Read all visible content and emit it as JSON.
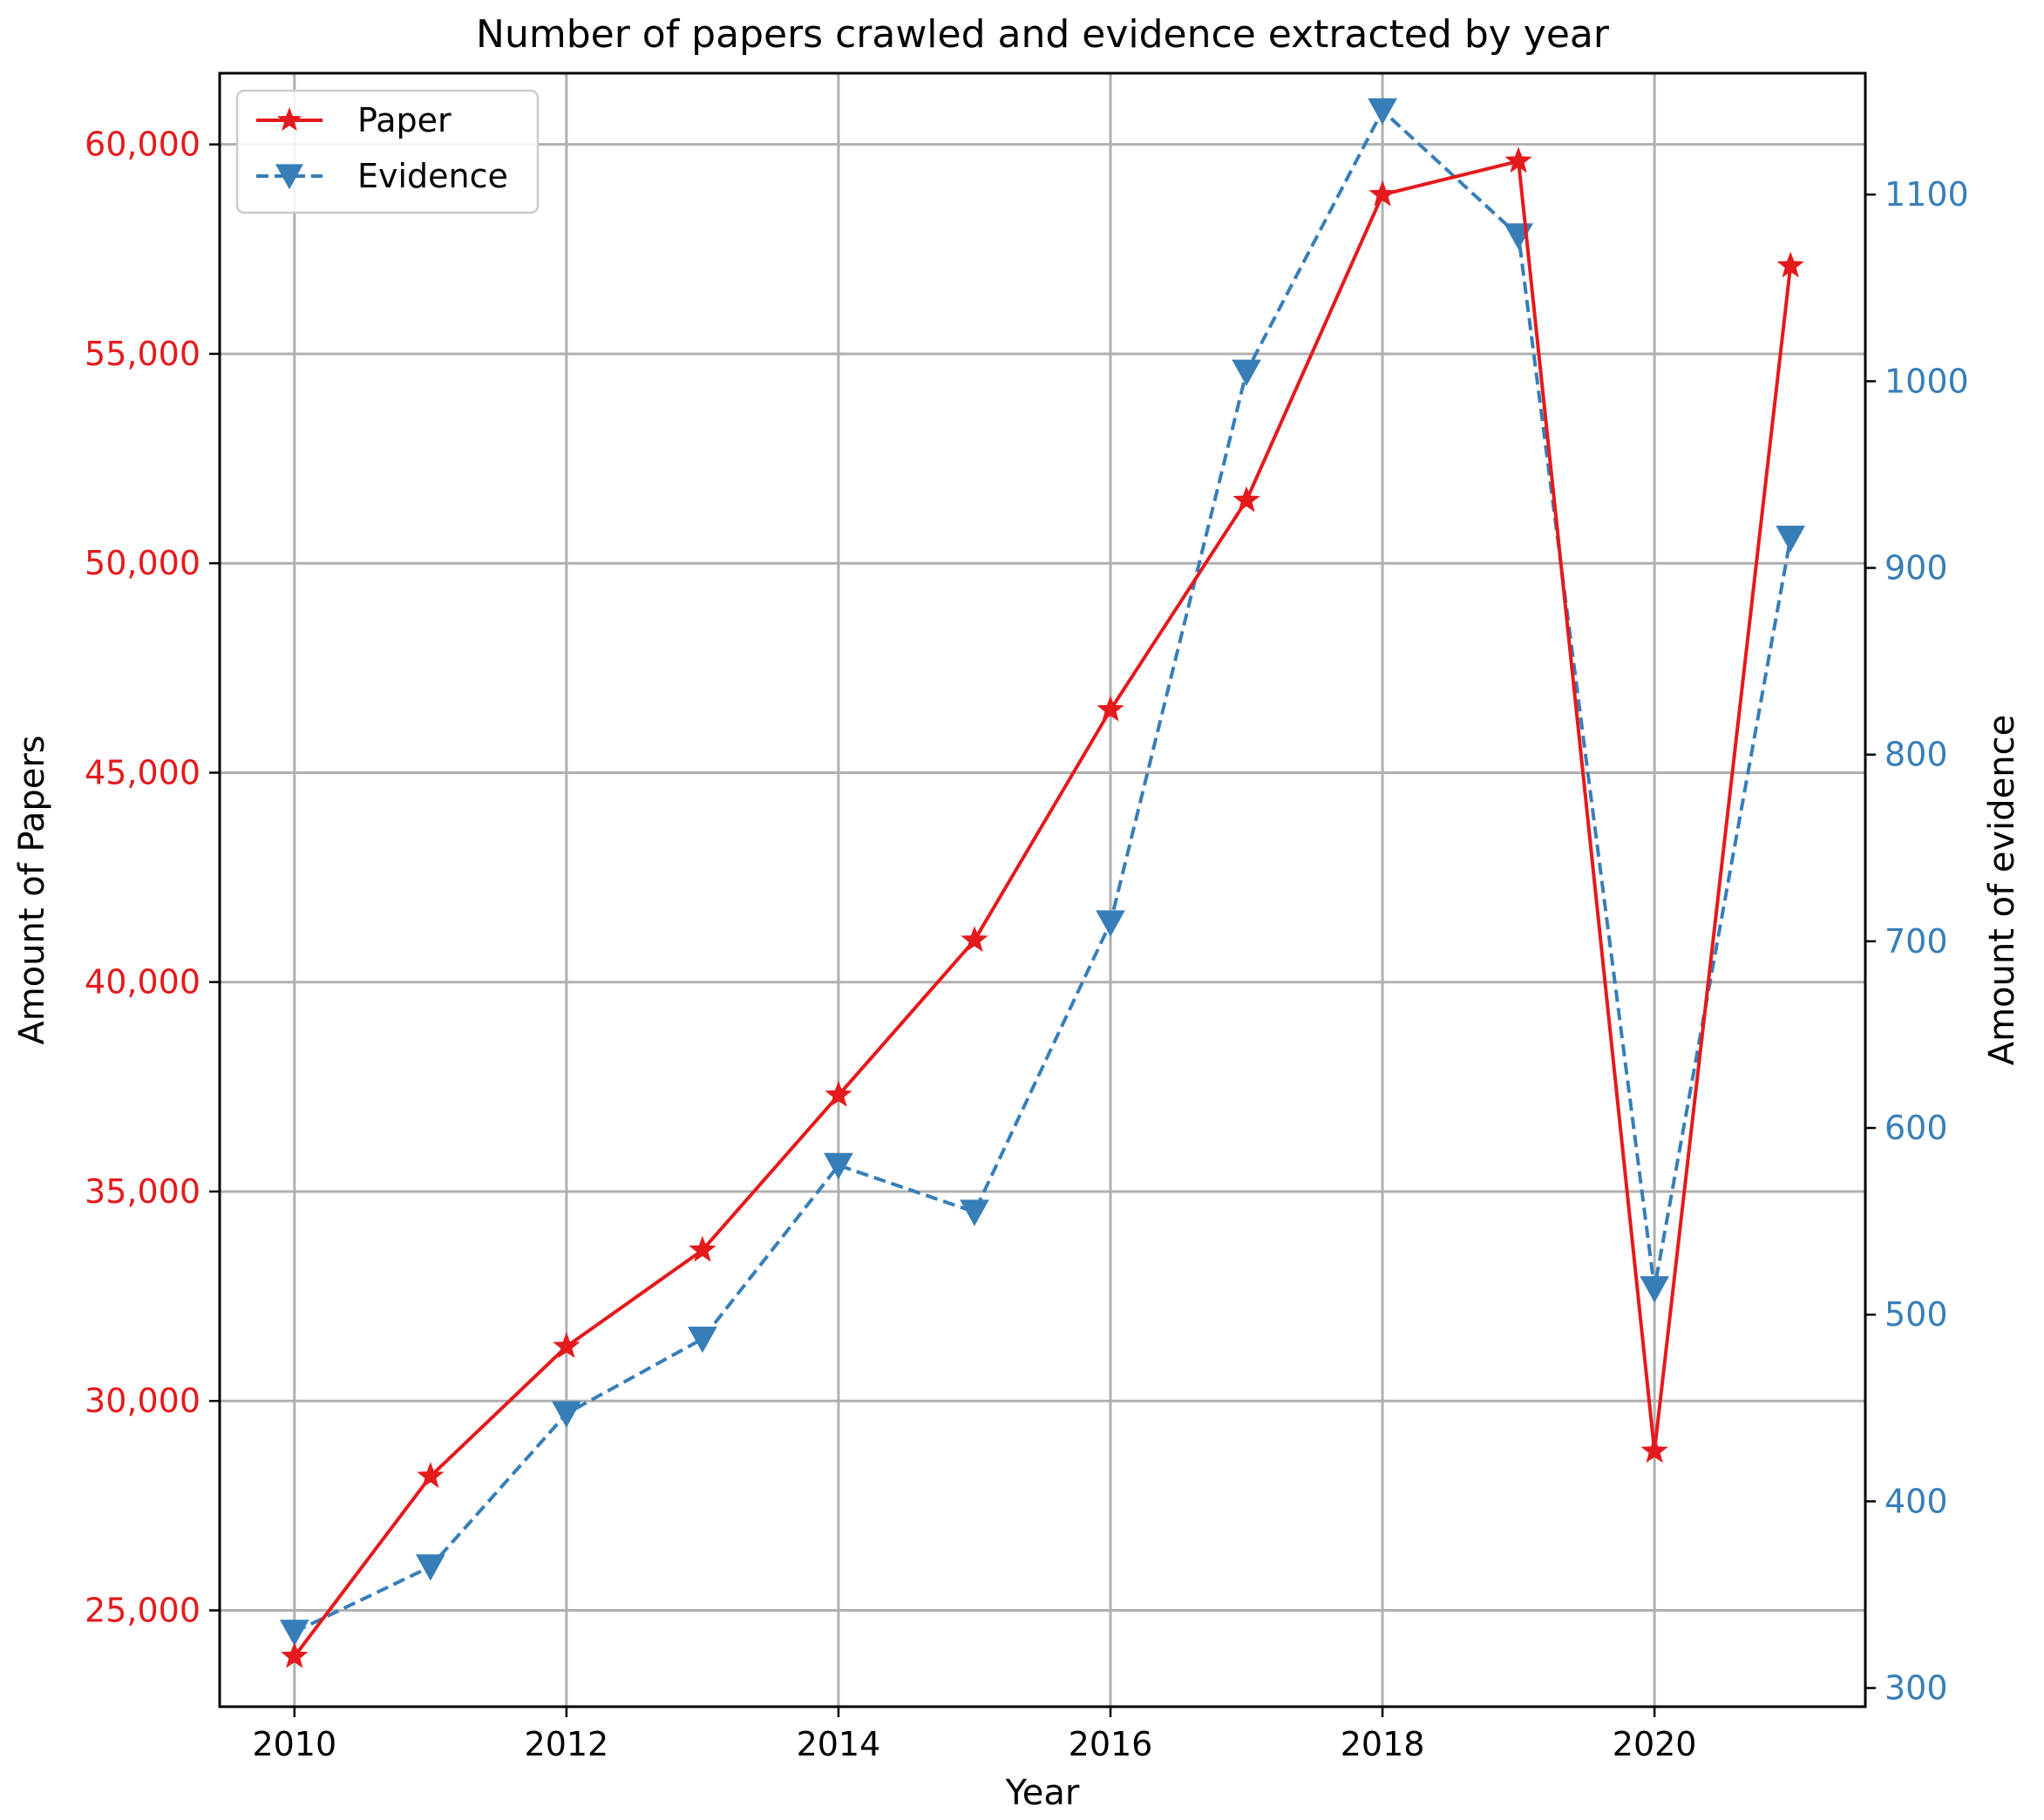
{
  "chart_data": {
    "type": "line",
    "title": "Number of papers crawled and evidence extracted by year",
    "xlabel": "Year",
    "ylabel_left": "Amount of Papers",
    "ylabel_right": "Amount of evidence",
    "x": [
      2010,
      2011,
      2012,
      2013,
      2014,
      2015,
      2016,
      2017,
      2018,
      2019,
      2020,
      2021
    ],
    "xticks": [
      "2010",
      "2012",
      "2014",
      "2016",
      "2018",
      "2020"
    ],
    "xlim": [
      2009.45,
      2021.55
    ],
    "ylim_left": [
      22700,
      61700
    ],
    "ylim_right": [
      290,
      1165
    ],
    "yticks_left": [
      "25,000",
      "30,000",
      "35,000",
      "40,000",
      "45,000",
      "50,000",
      "55,000",
      "60,000"
    ],
    "yticks_right": [
      "300",
      "400",
      "500",
      "600",
      "700",
      "800",
      "900",
      "1000",
      "1100"
    ],
    "grid": true,
    "legend_position": "top-left",
    "colors": {
      "paper": "#e41a1c",
      "evidence": "#377eb8",
      "grid": "#b0b0b0"
    },
    "series": [
      {
        "name": "Paper",
        "axis": "left",
        "marker": "star",
        "linestyle": "solid",
        "values": [
          23900,
          28200,
          31300,
          33600,
          37300,
          41000,
          46500,
          51500,
          58800,
          59600,
          28800,
          57100
        ]
      },
      {
        "name": "Evidence",
        "axis": "right",
        "marker": "triangle-down",
        "linestyle": "dashed",
        "values": [
          330,
          365,
          447,
          487,
          580,
          555,
          710,
          1005,
          1145,
          1078,
          514,
          916
        ]
      }
    ]
  }
}
